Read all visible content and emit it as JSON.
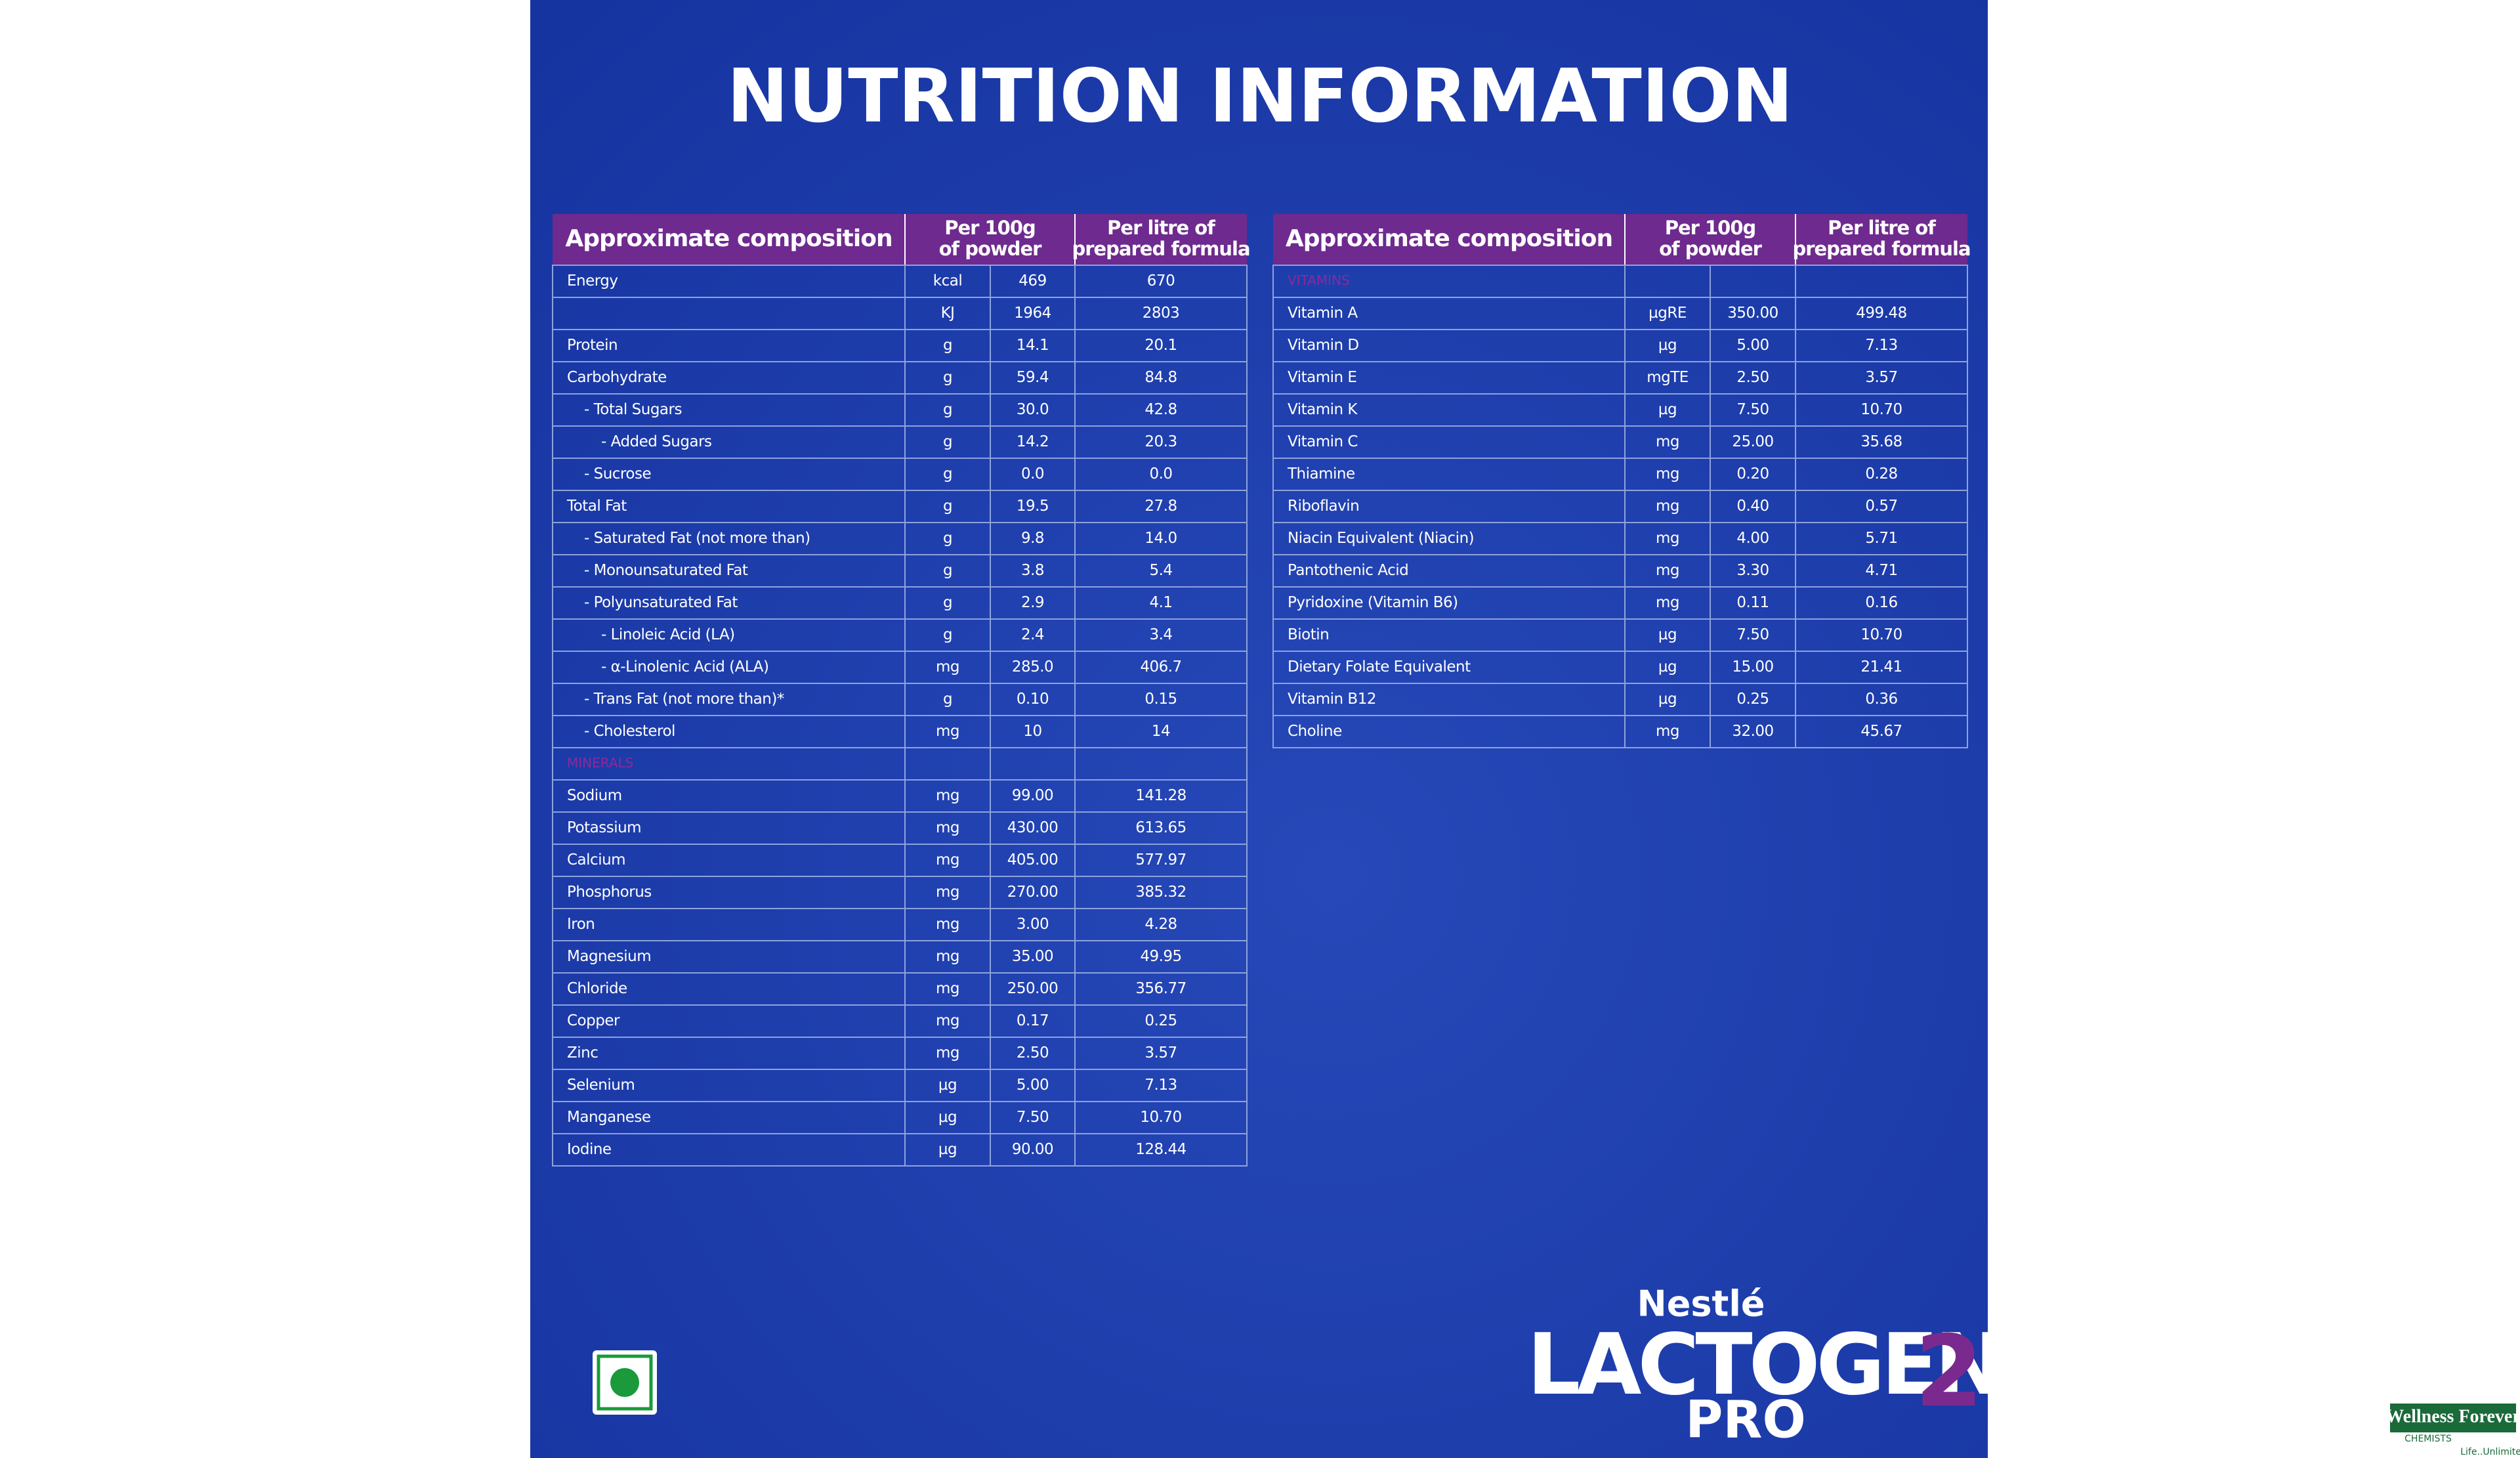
{
  "title": "NUTRITION INFORMATION",
  "tables": [
    {
      "header": {
        "composition": "Approximate composition",
        "per_100g": [
          "Per 100g",
          "of powder"
        ],
        "per_litre": [
          "Per litre of",
          "prepared formula"
        ]
      },
      "rows": [
        [
          "Energy",
          "kcal",
          "469",
          "670"
        ],
        [
          null,
          "KJ",
          "1964",
          "2803"
        ],
        [
          "Protein",
          "g",
          "14.1",
          "20.1"
        ],
        [
          "Carbohydrate",
          "g",
          "59.4",
          "84.8"
        ],
        [
          "- Total Sugars",
          "g",
          "30.0",
          "42.8"
        ],
        [
          "- Added Sugars",
          "g",
          "14.2",
          "20.3"
        ],
        [
          "- Sucrose",
          "g",
          "0.0",
          "0.0"
        ],
        [
          "Total Fat",
          "g",
          "19.5",
          "27.8"
        ],
        [
          "- Saturated Fat (not more than)",
          "g",
          "9.8",
          "14.0"
        ],
        [
          "- Monounsaturated Fat",
          "g",
          "3.8",
          "5.4"
        ],
        [
          "- Polyunsaturated Fat",
          "g",
          "2.9",
          "4.1"
        ],
        [
          "- Linoleic Acid (LA)",
          "g",
          "2.4",
          "3.4"
        ],
        [
          "- α-Linolenic Acid (ALA)",
          "mg",
          "285.0",
          "406.7"
        ],
        [
          "- Trans Fat (not more than)*",
          "g",
          "0.10",
          "0.15"
        ],
        [
          "- Cholesterol",
          "mg",
          "10",
          "14"
        ],
        [
          "MINERALS",
          null,
          null,
          null
        ],
        [
          "Sodium",
          "mg",
          "99.00",
          "141.28"
        ],
        [
          "Potassium",
          "mg",
          "430.00",
          "613.65"
        ],
        [
          "Calcium",
          "mg",
          "405.00",
          "577.97"
        ],
        [
          "Phosphorus",
          "mg",
          "270.00",
          "385.32"
        ],
        [
          "Iron",
          "mg",
          "3.00",
          "4.28"
        ],
        [
          "Magnesium",
          "mg",
          "35.00",
          "49.95"
        ],
        [
          "Chloride",
          "mg",
          "250.00",
          "356.77"
        ],
        [
          "Copper",
          "mg",
          "0.17",
          "0.25"
        ],
        [
          "Zinc",
          "mg",
          "2.50",
          "3.57"
        ],
        [
          "Selenium",
          "µg",
          "5.00",
          "7.13"
        ],
        [
          "Manganese",
          "µg",
          "7.50",
          "10.70"
        ],
        [
          "Iodine",
          "µg",
          "90.00",
          "128.44"
        ]
      ]
    },
    {
      "header": {
        "composition": "Approximate composition",
        "per_100g": [
          "Per 100g",
          "of powder"
        ],
        "per_litre": [
          "Per litre of",
          "prepared formula"
        ]
      },
      "rows": [
        [
          "VITAMINS",
          null,
          null,
          null
        ],
        [
          "Vitamin A",
          "µgRE",
          "350.00",
          "499.48"
        ],
        [
          "Vitamin D",
          "µg",
          "5.00",
          "7.13"
        ],
        [
          "Vitamin E",
          "mgTE",
          "2.50",
          "3.57"
        ],
        [
          "Vitamin K",
          "µg",
          "7.50",
          "10.70"
        ],
        [
          "Vitamin C",
          "mg",
          "25.00",
          "35.68"
        ],
        [
          "Thiamine",
          "mg",
          "0.20",
          "0.28"
        ],
        [
          "Riboflavin",
          "mg",
          "0.40",
          "0.57"
        ],
        [
          "Niacin Equivalent (Niacin)",
          "mg",
          "4.00",
          "5.71"
        ],
        [
          "Pantothenic Acid",
          "mg",
          "3.30",
          "4.71"
        ],
        [
          "Pyridoxine (Vitamin B6)",
          "mg",
          "0.11",
          "0.16"
        ],
        [
          "Biotin",
          "µg",
          "7.50",
          "10.70"
        ],
        [
          "Dietary Folate Equivalent",
          "µg",
          "15.00",
          "21.41"
        ],
        [
          "Vitamin B12",
          "µg",
          "0.25",
          "0.36"
        ],
        [
          "Choline",
          "mg",
          "32.00",
          "45.67"
        ]
      ]
    }
  ],
  "brand": {
    "maker": "Nestlé",
    "product": "LACTOGEN",
    "variant": "PRO",
    "stage": "2"
  },
  "watermark": {
    "name": "Wellness Forever",
    "sub": "CHEMISTS",
    "tagline": "Life..Unlimited"
  }
}
